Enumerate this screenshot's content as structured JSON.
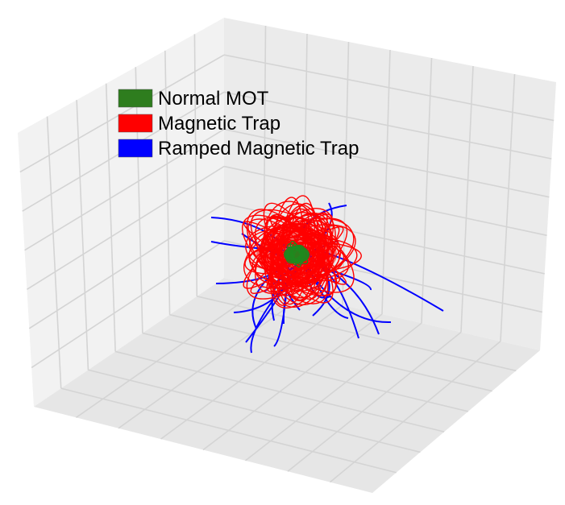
{
  "chart_data": {
    "type": "line",
    "projection": "3d",
    "grid": true,
    "legend_placement": "upper-left",
    "legend": [
      {
        "label": "Normal MOT",
        "color": "#2e7d1e"
      },
      {
        "label": "Magnetic Trap",
        "color": "#ff0000"
      },
      {
        "label": "Ramped Magnetic Trap",
        "color": "#0000ff"
      }
    ],
    "series": [
      {
        "name": "Normal MOT",
        "color": "#2e7d1e",
        "kind": "compact-cluster"
      },
      {
        "name": "Magnetic Trap",
        "color": "#ff0000",
        "kind": "bounded-orbits"
      },
      {
        "name": "Ramped Magnetic Trap",
        "color": "#0000ff",
        "kind": "escaping-trajectories"
      }
    ]
  }
}
